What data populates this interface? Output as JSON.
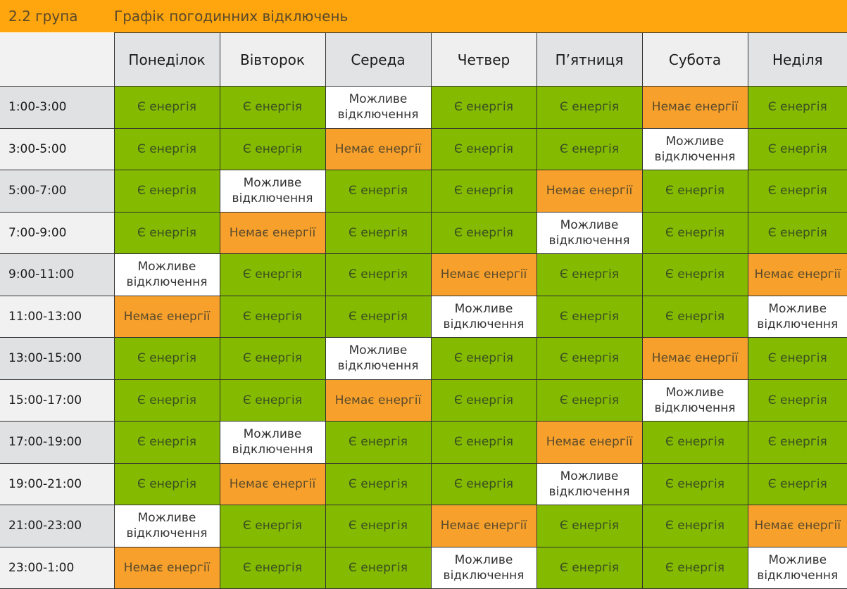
{
  "header": {
    "group": "2.2 група",
    "title": "Графік погодинних відключень"
  },
  "days": [
    "Понеділок",
    "Вівторок",
    "Середа",
    "Четвер",
    "П’ятниця",
    "Субота",
    "Неділя"
  ],
  "status_labels": {
    "on": "Є енергія",
    "off": "Немає енергії",
    "maybe": "Можливе відключення"
  },
  "colors": {
    "on": "#84ba00",
    "off": "#f7a12c",
    "maybe": "#ffffff",
    "header_bar": "#ffa50d"
  },
  "rows": [
    {
      "time": "1:00-3:00",
      "cells": [
        "on",
        "on",
        "maybe",
        "on",
        "on",
        "off",
        "on"
      ]
    },
    {
      "time": "3:00-5:00",
      "cells": [
        "on",
        "on",
        "off",
        "on",
        "on",
        "maybe",
        "on"
      ]
    },
    {
      "time": "5:00-7:00",
      "cells": [
        "on",
        "maybe",
        "on",
        "on",
        "off",
        "on",
        "on"
      ]
    },
    {
      "time": "7:00-9:00",
      "cells": [
        "on",
        "off",
        "on",
        "on",
        "maybe",
        "on",
        "on"
      ]
    },
    {
      "time": "9:00-11:00",
      "cells": [
        "maybe",
        "on",
        "on",
        "off",
        "on",
        "on",
        "off"
      ]
    },
    {
      "time": "11:00-13:00",
      "cells": [
        "off",
        "on",
        "on",
        "maybe",
        "on",
        "on",
        "maybe"
      ]
    },
    {
      "time": "13:00-15:00",
      "cells": [
        "on",
        "on",
        "maybe",
        "on",
        "on",
        "off",
        "on"
      ]
    },
    {
      "time": "15:00-17:00",
      "cells": [
        "on",
        "on",
        "off",
        "on",
        "on",
        "maybe",
        "on"
      ]
    },
    {
      "time": "17:00-19:00",
      "cells": [
        "on",
        "maybe",
        "on",
        "on",
        "off",
        "on",
        "on"
      ]
    },
    {
      "time": "19:00-21:00",
      "cells": [
        "on",
        "off",
        "on",
        "on",
        "maybe",
        "on",
        "on"
      ]
    },
    {
      "time": "21:00-23:00",
      "cells": [
        "maybe",
        "on",
        "on",
        "off",
        "on",
        "on",
        "off"
      ]
    },
    {
      "time": "23:00-1:00",
      "cells": [
        "off",
        "on",
        "on",
        "maybe",
        "on",
        "on",
        "maybe"
      ]
    }
  ]
}
